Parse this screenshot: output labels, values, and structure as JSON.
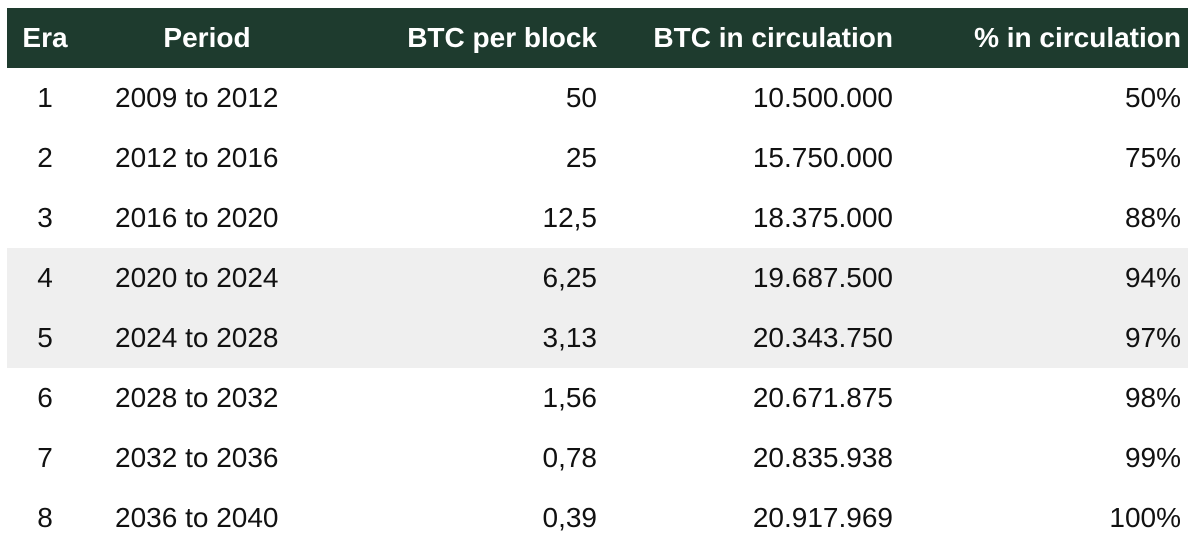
{
  "table": {
    "headers": {
      "era": "Era",
      "period": "Period",
      "btc_per_block": "BTC per block",
      "btc_in_circulation": "BTC in circulation",
      "pct_in_circulation": "% in circulation"
    },
    "rows": [
      {
        "era": "1",
        "period": "2009 to 2012",
        "btc_per_block": "50",
        "btc_in_circulation": "10.500.000",
        "pct_in_circulation": "50%",
        "highlighted": false
      },
      {
        "era": "2",
        "period": "2012 to 2016",
        "btc_per_block": "25",
        "btc_in_circulation": "15.750.000",
        "pct_in_circulation": "75%",
        "highlighted": false
      },
      {
        "era": "3",
        "period": "2016 to 2020",
        "btc_per_block": "12,5",
        "btc_in_circulation": "18.375.000",
        "pct_in_circulation": "88%",
        "highlighted": false
      },
      {
        "era": "4",
        "period": "2020 to 2024",
        "btc_per_block": "6,25",
        "btc_in_circulation": "19.687.500",
        "pct_in_circulation": "94%",
        "highlighted": true
      },
      {
        "era": "5",
        "period": "2024 to 2028",
        "btc_per_block": "3,13",
        "btc_in_circulation": "20.343.750",
        "pct_in_circulation": "97%",
        "highlighted": true
      },
      {
        "era": "6",
        "period": "2028 to 2032",
        "btc_per_block": "1,56",
        "btc_in_circulation": "20.671.875",
        "pct_in_circulation": "98%",
        "highlighted": false
      },
      {
        "era": "7",
        "period": "2032 to 2036",
        "btc_per_block": "0,78",
        "btc_in_circulation": "20.835.938",
        "pct_in_circulation": "99%",
        "highlighted": false
      },
      {
        "era": "8",
        "period": "2036 to 2040",
        "btc_per_block": "0,39",
        "btc_in_circulation": "20.917.969",
        "pct_in_circulation": "100%",
        "highlighted": false
      }
    ]
  },
  "colors": {
    "header_background": "#1e3b2e",
    "header_text": "#ffffff",
    "highlight_row": "#efefef"
  }
}
